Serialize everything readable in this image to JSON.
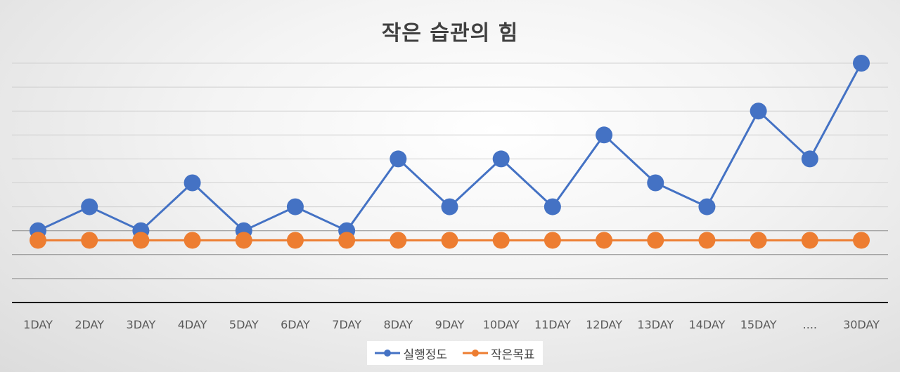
{
  "chart_data": {
    "type": "line",
    "title": "작은 습관의 힘",
    "categories": [
      "1DAY",
      "2DAY",
      "3DAY",
      "4DAY",
      "5DAY",
      "6DAY",
      "7DAY",
      "8DAY",
      "9DAY",
      "10DAY",
      "11DAY",
      "12DAY",
      "13DAY",
      "14DAY",
      "15DAY",
      "....",
      "30DAY"
    ],
    "series": [
      {
        "name": "실행정도",
        "color": "#4472C4",
        "values": [
          3,
          4,
          3,
          5,
          3,
          4,
          3,
          6,
          4,
          6,
          4,
          7,
          5,
          4,
          8,
          6,
          10
        ]
      },
      {
        "name": "작은목표",
        "color": "#ED7D31",
        "values": [
          2.6,
          2.6,
          2.6,
          2.6,
          2.6,
          2.6,
          2.6,
          2.6,
          2.6,
          2.6,
          2.6,
          2.6,
          2.6,
          2.6,
          2.6,
          2.6,
          2.6
        ]
      }
    ],
    "ylim": [
      0,
      10
    ],
    "grid": true,
    "legend": "bottom"
  }
}
